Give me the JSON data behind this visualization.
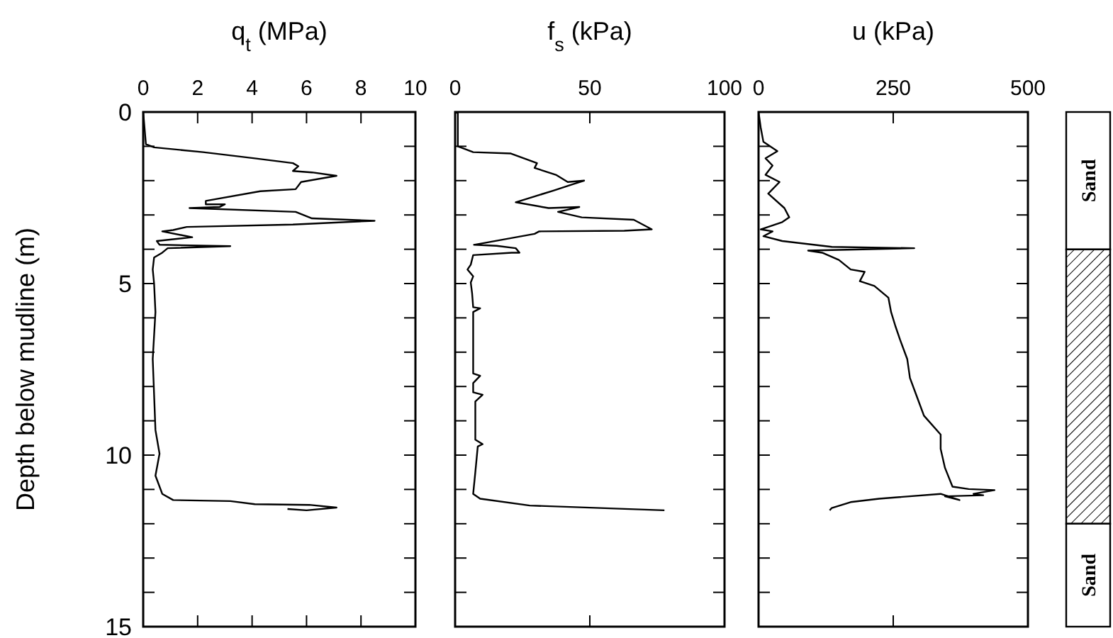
{
  "chart_data": [
    {
      "type": "line",
      "title": "q$_{t}$ (MPa)",
      "ylabel": "Depth below mudline (m)",
      "xlim": [
        0,
        10
      ],
      "xticks": [
        0,
        2,
        4,
        6,
        8,
        10
      ],
      "ylim": [
        15,
        0
      ],
      "yticks": [
        0,
        {
          "value": 1,
          "label": null
        },
        {
          "value": 2,
          "label": null
        },
        {
          "value": 3,
          "label": null
        },
        {
          "value": 4,
          "label": null
        },
        5,
        {
          "value": 6,
          "label": null
        },
        {
          "value": 7,
          "label": null
        },
        {
          "value": 8,
          "label": null
        },
        {
          "value": 9,
          "label": null
        },
        10,
        {
          "value": 11,
          "label": null
        },
        {
          "value": 12,
          "label": null
        },
        {
          "value": 13,
          "label": null
        },
        {
          "value": 14,
          "label": null
        },
        15
      ],
      "series": [
        {
          "color": "#000000",
          "x": [
            0,
            0.1,
            0.4,
            2.2,
            4.1,
            5.5,
            5.7,
            5.5,
            6.2,
            7.1,
            5.8,
            5.6,
            4.3,
            2.3,
            2.3,
            3.0,
            2.8,
            1.7,
            5.6,
            6.2,
            8.5,
            5.5,
            1.6,
            1.1,
            0.7,
            1.8,
            0.5,
            0.6,
            3.2,
            0.9,
            0.7,
            0.4,
            0.35,
            0.4,
            0.45,
            0.35,
            0.45,
            0.6,
            0.45,
            0.7,
            1.1,
            3.2,
            4.1,
            6.1,
            7.1,
            6.0,
            5.3
          ],
          "values": [
            0,
            0.94,
            1.03,
            1.17,
            1.35,
            1.49,
            1.58,
            1.72,
            1.76,
            1.86,
            2.04,
            2.25,
            2.31,
            2.59,
            2.69,
            2.69,
            2.77,
            2.8,
            2.91,
            3.1,
            3.17,
            3.28,
            3.35,
            3.44,
            3.48,
            3.65,
            3.76,
            3.87,
            3.91,
            3.97,
            4.1,
            4.24,
            4.59,
            5.0,
            5.83,
            7.2,
            9.27,
            9.96,
            10.6,
            11.13,
            11.31,
            11.34,
            11.43,
            11.45,
            11.53,
            11.61,
            11.57
          ]
        }
      ]
    },
    {
      "type": "line",
      "title": "f$_{s}$ (kPa)",
      "xlim": [
        0,
        100
      ],
      "xticks": [
        0,
        50,
        100
      ],
      "ylim": [
        15,
        0
      ],
      "tick_labels": "x",
      "yticks": [
        0,
        {
          "value": 1,
          "label": null
        },
        {
          "value": 2,
          "label": null
        },
        {
          "value": 3,
          "label": null
        },
        {
          "value": 4,
          "label": null
        },
        5,
        {
          "value": 6,
          "label": null
        },
        {
          "value": 7,
          "label": null
        },
        {
          "value": 8,
          "label": null
        },
        {
          "value": 9,
          "label": null
        },
        10,
        {
          "value": 11,
          "label": null
        },
        {
          "value": 12,
          "label": null
        },
        {
          "value": 13,
          "label": null
        },
        {
          "value": 14,
          "label": null
        },
        15
      ],
      "series": [
        {
          "color": "#000000",
          "x": [
            0,
            1,
            1,
            6.7,
            20.7,
            30.4,
            29.5,
            37.4,
            41.8,
            47.9,
            43.5,
            36.5,
            22.5,
            34.7,
            46.1,
            38.2,
            47,
            66.3,
            73,
            62.8,
            31.2,
            29.5,
            7,
            15.4,
            22.5,
            23.9,
            21,
            6.7,
            5.8,
            4.6,
            6.7,
            5.8,
            6.3,
            6.7,
            9.3,
            6.7,
            6.7,
            9.3,
            6.7,
            6.7,
            10.2,
            7.5,
            7.5,
            10.2,
            8.4,
            7.5,
            6.7,
            9.3,
            27.7,
            77.7
          ],
          "values": [
            0,
            0.04,
            1.0,
            1.17,
            1.21,
            1.49,
            1.63,
            1.83,
            2.04,
            2.0,
            2.11,
            2.29,
            2.63,
            2.8,
            2.77,
            2.91,
            3.07,
            3.14,
            3.42,
            3.46,
            3.48,
            3.55,
            3.87,
            3.9,
            3.97,
            4.1,
            4.1,
            4.17,
            4.45,
            4.59,
            4.79,
            4.97,
            5.28,
            5.69,
            5.72,
            5.83,
            7.62,
            7.69,
            7.9,
            8.17,
            8.24,
            8.44,
            9.55,
            9.68,
            9.75,
            10.5,
            11.13,
            11.27,
            11.47,
            11.61
          ]
        }
      ]
    },
    {
      "type": "line",
      "title": "u (kPa)",
      "xlim": [
        0,
        500
      ],
      "xticks": [
        0,
        250,
        500
      ],
      "ylim": [
        15,
        0
      ],
      "tick_labels": "x",
      "yticks": [
        0,
        {
          "value": 1,
          "label": null
        },
        {
          "value": 2,
          "label": null
        },
        {
          "value": 3,
          "label": null
        },
        {
          "value": 4,
          "label": null
        },
        5,
        {
          "value": 6,
          "label": null
        },
        {
          "value": 7,
          "label": null
        },
        {
          "value": 8,
          "label": null
        },
        {
          "value": 9,
          "label": null
        },
        10,
        {
          "value": 11,
          "label": null
        },
        {
          "value": 12,
          "label": null
        },
        {
          "value": 13,
          "label": null
        },
        {
          "value": 14,
          "label": null
        },
        15
      ],
      "series": [
        {
          "color": "#000000",
          "x": [
            0,
            4,
            9,
            35,
            13,
            26,
            13,
            39,
            18,
            48,
            57,
            44,
            4,
            26,
            9,
            44,
            136,
            289,
            92,
            118,
            149,
            171,
            197,
            188,
            215,
            241,
            246,
            254,
            263,
            276,
            281,
            294,
            307,
            338,
            338,
            346,
            360,
            390,
            438,
            399,
            417,
            346,
            373,
            338,
            224,
            171,
            136,
            132
          ],
          "values": [
            0,
            0.45,
            0.87,
            1.14,
            1.35,
            1.56,
            1.83,
            2.04,
            2.38,
            2.8,
            3.07,
            3.21,
            3.42,
            3.48,
            3.62,
            3.76,
            3.93,
            3.97,
            4.04,
            4.1,
            4.31,
            4.59,
            4.66,
            4.93,
            5.07,
            5.41,
            5.83,
            6.24,
            6.65,
            7.2,
            7.75,
            8.3,
            8.85,
            9.4,
            9.82,
            10.37,
            10.92,
            10.99,
            11.02,
            11.13,
            11.17,
            11.2,
            11.31,
            11.13,
            11.27,
            11.37,
            11.54,
            11.61
          ]
        }
      ]
    },
    {
      "type": "other",
      "annotations": [
        "Sand",
        "Sand"
      ]
    }
  ]
}
